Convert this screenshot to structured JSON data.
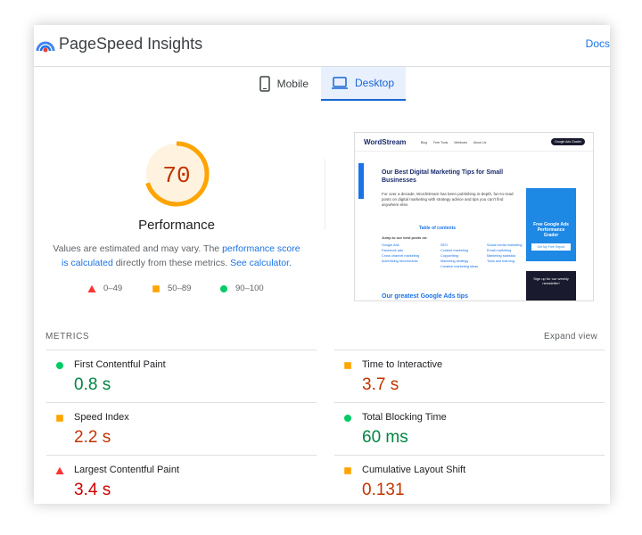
{
  "header": {
    "title": "PageSpeed Insights",
    "docs": "Docs"
  },
  "tabs": [
    {
      "label": "Mobile",
      "active": false
    },
    {
      "label": "Desktop",
      "active": true
    }
  ],
  "score": {
    "value": 70,
    "max": 100,
    "label": "Performance",
    "note": [
      {
        "text": "Values are estimated and may vary. The ",
        "link": false
      },
      {
        "text": "performance score is calculated",
        "link": true
      },
      {
        "text": " directly from these metrics. ",
        "link": false
      },
      {
        "text": "See calculator.",
        "link": true
      }
    ],
    "legend": [
      {
        "label": "0–49",
        "status": "poor"
      },
      {
        "label": "50–89",
        "status": "average"
      },
      {
        "label": "90–100",
        "status": "good"
      }
    ]
  },
  "preview": {
    "logo": "WordStream",
    "nav": [
      "Blog",
      "Free Tools",
      "Webinars",
      "About Us"
    ],
    "button": "Google Ads Grader",
    "title": "Our Best Digital Marketing Tips for Small Businesses",
    "intro": "For over a decade, WordStream has been publishing in-depth, fun-to-read posts on digital marketing with strategy advice and tips you can't find anywhere else.",
    "toc": "Table of contents",
    "jump": "Jump to our best posts on:",
    "columns": [
      [
        "Google Ads",
        "Facebook ads",
        "Cross channel marketing",
        "Advertising benchmarks"
      ],
      [
        "SEO",
        "Content marketing",
        "Copywriting",
        "Marketing strategy",
        "Creative marketing ideas"
      ],
      [
        "Social media marketing",
        "Email marketing",
        "Marketing statistics",
        "Tools and learning"
      ]
    ],
    "ad": "Free Google Ads Performance Grader",
    "ad_button": "Get My Free Report",
    "newsletter": "Sign up for our weekly newsletter!",
    "next": "Our greatest Google Ads tips"
  },
  "metrics": {
    "heading": "METRICS",
    "expand": "Expand view",
    "items": [
      {
        "name": "First Contentful Paint",
        "value": "0.8 s",
        "status": "good"
      },
      {
        "name": "Time to Interactive",
        "value": "3.7 s",
        "status": "average"
      },
      {
        "name": "Speed Index",
        "value": "2.2 s",
        "status": "average"
      },
      {
        "name": "Total Blocking Time",
        "value": "60 ms",
        "status": "good"
      },
      {
        "name": "Largest Contentful Paint",
        "value": "3.4 s",
        "status": "poor"
      },
      {
        "name": "Cumulative Layout Shift",
        "value": "0.131",
        "status": "average"
      }
    ]
  }
}
